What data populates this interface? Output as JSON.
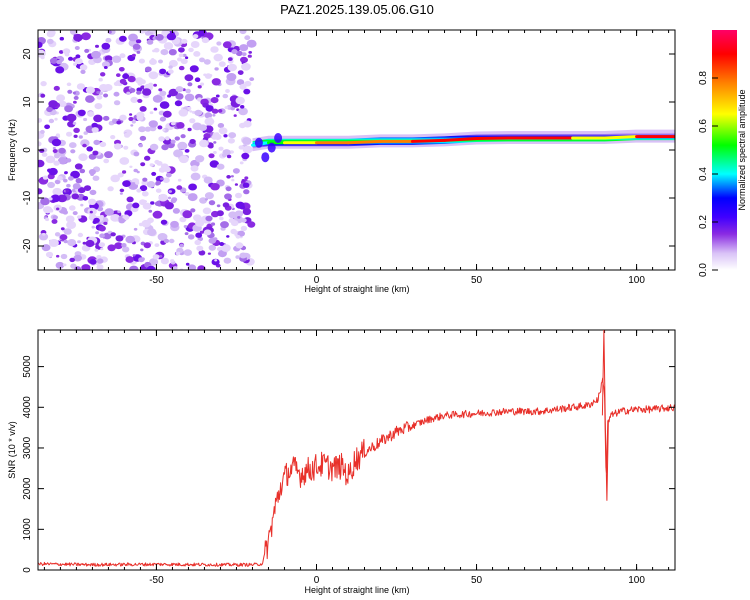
{
  "title": "PAZ1.2025.139.05.06.G10",
  "chart_data": [
    {
      "type": "heatmap",
      "xlabel": "Height of straight line (km)",
      "ylabel": "Frequency (Hz)",
      "xlim": [
        -87,
        112
      ],
      "ylim": [
        -25,
        25
      ],
      "xticks": [
        -50,
        0,
        50,
        100
      ],
      "yticks": [
        -20,
        -10,
        0,
        10,
        20
      ],
      "colorbar": {
        "label": "Normalized spectral amplitude",
        "ticks": [
          "0.0",
          "0.2",
          "0.4",
          "0.6",
          "0.8"
        ],
        "colors": [
          "#ffffff",
          "#d9c2f7",
          "#8a2be2",
          "#4000ff",
          "#0000ff",
          "#00ffff",
          "#00ff00",
          "#ffff00",
          "#ff8000",
          "#ff0000",
          "#ff0066"
        ]
      },
      "noise_region_x": [
        -87,
        -20
      ],
      "signal_band": {
        "x": [
          -20,
          -15,
          -10,
          0,
          10,
          20,
          30,
          40,
          50,
          60,
          70,
          80,
          90,
          100,
          112
        ],
        "frequency_hz": [
          1.0,
          1.5,
          1.5,
          1.5,
          1.5,
          1.8,
          1.8,
          2.0,
          2.4,
          2.5,
          2.5,
          2.5,
          2.5,
          2.8,
          2.8
        ],
        "amplitude": [
          0.3,
          0.45,
          0.7,
          0.85,
          0.85,
          0.9,
          0.9,
          0.95,
          1.0,
          1.0,
          0.95,
          0.95,
          0.6,
          0.9,
          0.95
        ]
      }
    },
    {
      "type": "line",
      "xlabel": "Height of straight line (km)",
      "ylabel": "SNR (10 * v/v)",
      "xlim": [
        -87,
        112
      ],
      "ylim": [
        0,
        5900
      ],
      "xticks": [
        -50,
        0,
        50,
        100
      ],
      "yticks": [
        0,
        1000,
        2000,
        3000,
        4000,
        5000
      ],
      "color": "#e8302a",
      "series": [
        {
          "x": [
            -87,
            -70,
            -50,
            -30,
            -20,
            -17,
            -15,
            -13,
            -11,
            -9,
            -7,
            -5,
            -3,
            -1,
            0,
            2,
            5,
            8,
            10,
            12,
            15,
            20,
            25,
            30,
            35,
            40,
            50,
            60,
            70,
            80,
            85,
            88,
            89.5,
            90,
            90.5,
            91,
            92,
            95,
            100,
            105,
            112
          ],
          "y": [
            150,
            130,
            140,
            130,
            130,
            150,
            700,
            1500,
            2100,
            2400,
            2500,
            2350,
            2450,
            2500,
            2550,
            2600,
            2500,
            2550,
            2300,
            2700,
            2900,
            3150,
            3400,
            3550,
            3700,
            3800,
            3850,
            3900,
            3900,
            4000,
            4050,
            4200,
            4700,
            4300,
            2100,
            3600,
            3800,
            3900,
            3950,
            3950,
            4000
          ]
        }
      ]
    }
  ]
}
